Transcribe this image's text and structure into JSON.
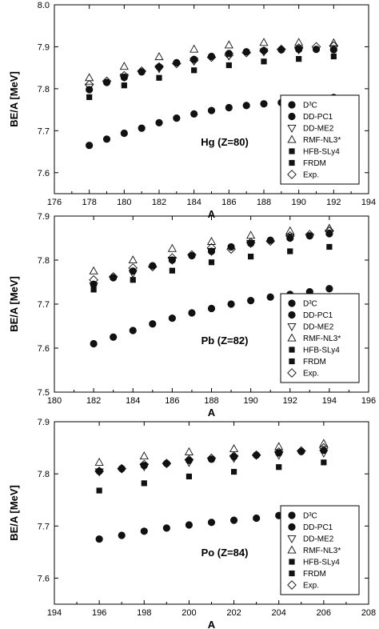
{
  "chart_data": [
    {
      "type": "scatter",
      "panel_label": "Hg (Z=80)",
      "xlabel": "A",
      "ylabel": "BE/A [MeV]",
      "xlim": [
        176,
        194
      ],
      "ylim": [
        7.55,
        8.0
      ],
      "xticks": [
        "176",
        "178",
        "180",
        "182",
        "184",
        "186",
        "188",
        "190",
        "192",
        "194"
      ],
      "yticks": [
        "7.6",
        "7.7",
        "7.8",
        "7.9",
        "8.0"
      ],
      "legend_position": "bottom-right",
      "series": [
        {
          "name": "D³C",
          "marker": "circle-filled",
          "x": [
            178,
            179,
            180,
            181,
            182,
            183,
            184,
            185,
            186,
            187,
            188,
            189,
            190,
            191,
            192
          ],
          "y": [
            7.665,
            7.68,
            7.694,
            7.706,
            7.719,
            7.73,
            7.74,
            7.748,
            7.755,
            7.76,
            7.764,
            7.767,
            7.771,
            7.775,
            7.779
          ]
        },
        {
          "name": "DD-PC1",
          "marker": "circle-filled",
          "x": [
            178,
            179,
            180,
            181,
            182,
            183,
            184,
            185,
            186,
            187,
            188,
            189,
            190,
            191,
            192
          ],
          "y": [
            7.798,
            7.815,
            7.827,
            7.84,
            7.852,
            7.862,
            7.87,
            7.877,
            7.884,
            7.888,
            7.891,
            7.893,
            7.894,
            7.894,
            7.893
          ]
        },
        {
          "name": "DD-ME2",
          "marker": "triangle-down-open",
          "x": [
            178,
            180,
            182,
            184,
            186,
            188,
            190,
            192
          ],
          "y": [
            7.804,
            7.828,
            7.848,
            7.866,
            7.878,
            7.888,
            7.893,
            7.896
          ]
        },
        {
          "name": "RMF-NL3*",
          "marker": "triangle-up-open",
          "x": [
            178,
            180,
            182,
            184,
            186,
            188,
            190,
            192
          ],
          "y": [
            7.826,
            7.853,
            7.876,
            7.894,
            7.904,
            7.91,
            7.91,
            7.909
          ]
        },
        {
          "name": "HFB-SLy4",
          "marker": "square-filled",
          "x": [
            178,
            180,
            182,
            184,
            186,
            188,
            190,
            192
          ],
          "y": [
            7.78,
            7.808,
            7.826,
            7.844,
            7.856,
            7.865,
            7.871,
            7.877
          ]
        },
        {
          "name": "FRDM",
          "marker": "square-filled",
          "x": [],
          "y": []
        },
        {
          "name": "Exp.",
          "marker": "diamond-open",
          "x": [
            178,
            179,
            180,
            181,
            182,
            183,
            184,
            185,
            186,
            187,
            188,
            189,
            190,
            191,
            192
          ],
          "y": [
            7.81,
            7.818,
            7.831,
            7.842,
            7.852,
            7.86,
            7.868,
            7.875,
            7.88,
            7.886,
            7.89,
            7.894,
            7.897,
            7.9,
            7.902
          ]
        }
      ]
    },
    {
      "type": "scatter",
      "panel_label": "Pb (Z=82)",
      "xlabel": "A",
      "ylabel": "BE/A [MeV]",
      "xlim": [
        180,
        196
      ],
      "ylim": [
        7.5,
        7.9
      ],
      "xticks": [
        "180",
        "182",
        "184",
        "186",
        "188",
        "190",
        "192",
        "194",
        "196"
      ],
      "yticks": [
        "7.5",
        "7.6",
        "7.7",
        "7.8",
        "7.9"
      ],
      "legend_position": "bottom-right",
      "series": [
        {
          "name": "D³C",
          "marker": "circle-filled",
          "x": [
            182,
            183,
            184,
            185,
            186,
            187,
            188,
            189,
            190,
            191,
            192,
            193,
            194
          ],
          "y": [
            7.61,
            7.625,
            7.64,
            7.655,
            7.668,
            7.68,
            7.69,
            7.7,
            7.708,
            7.716,
            7.722,
            7.728,
            7.735
          ]
        },
        {
          "name": "DD-PC1",
          "marker": "circle-filled",
          "x": [
            182,
            183,
            184,
            185,
            186,
            187,
            188,
            189,
            190,
            191,
            192,
            193,
            194
          ],
          "y": [
            7.745,
            7.76,
            7.775,
            7.787,
            7.8,
            7.81,
            7.82,
            7.83,
            7.838,
            7.845,
            7.85,
            7.855,
            7.86
          ]
        },
        {
          "name": "DD-ME2",
          "marker": "triangle-down-open",
          "x": [
            182,
            184,
            186,
            188,
            190,
            192,
            194
          ],
          "y": [
            7.742,
            7.77,
            7.8,
            7.82,
            7.838,
            7.852,
            7.862
          ]
        },
        {
          "name": "RMF-NL3*",
          "marker": "triangle-up-open",
          "x": [
            182,
            184,
            186,
            188,
            190,
            192,
            194
          ],
          "y": [
            7.775,
            7.8,
            7.826,
            7.842,
            7.856,
            7.866,
            7.872
          ]
        },
        {
          "name": "HFB-SLy4",
          "marker": "square-filled",
          "x": [
            182,
            184,
            186,
            188,
            190,
            192,
            194
          ],
          "y": [
            7.733,
            7.755,
            7.776,
            7.795,
            7.808,
            7.82,
            7.83
          ]
        },
        {
          "name": "FRDM",
          "marker": "square-filled",
          "x": [],
          "y": []
        },
        {
          "name": "Exp.",
          "marker": "diamond-open",
          "x": [
            182,
            183,
            184,
            185,
            186,
            187,
            188,
            189,
            190,
            191,
            192,
            193,
            194
          ],
          "y": [
            7.755,
            7.762,
            7.782,
            7.785,
            7.805,
            7.812,
            7.828,
            7.825,
            7.84,
            7.843,
            7.855,
            7.858,
            7.866
          ]
        }
      ]
    },
    {
      "type": "scatter",
      "panel_label": "Po (Z=84)",
      "xlabel": "A",
      "ylabel": "BE/A [MeV]",
      "xlim": [
        194,
        208
      ],
      "ylim": [
        7.55,
        7.9
      ],
      "xticks": [
        "194",
        "196",
        "198",
        "200",
        "202",
        "204",
        "206",
        "208"
      ],
      "yticks": [
        "7.6",
        "7.7",
        "7.8",
        "7.9"
      ],
      "legend_position": "bottom-right",
      "series": [
        {
          "name": "D³C",
          "marker": "circle-filled",
          "x": [
            196,
            197,
            198,
            199,
            200,
            201,
            202,
            203,
            204,
            205,
            206
          ],
          "y": [
            7.675,
            7.682,
            7.69,
            7.696,
            7.702,
            7.707,
            7.711,
            7.715,
            7.72,
            7.726,
            7.73
          ]
        },
        {
          "name": "DD-PC1",
          "marker": "circle-filled",
          "x": [
            196,
            197,
            198,
            199,
            200,
            201,
            202,
            203,
            204,
            205,
            206
          ],
          "y": [
            7.805,
            7.81,
            7.816,
            7.82,
            7.826,
            7.828,
            7.833,
            7.836,
            7.84,
            7.843,
            7.845
          ]
        },
        {
          "name": "DD-ME2",
          "marker": "triangle-down-open",
          "x": [
            196,
            198,
            200,
            202,
            204,
            206
          ],
          "y": [
            7.804,
            7.814,
            7.822,
            7.83,
            7.836,
            7.84
          ]
        },
        {
          "name": "RMF-NL3*",
          "marker": "triangle-up-open",
          "x": [
            196,
            198,
            200,
            202,
            204,
            206
          ],
          "y": [
            7.822,
            7.834,
            7.842,
            7.848,
            7.852,
            7.858
          ]
        },
        {
          "name": "HFB-SLy4",
          "marker": "square-filled",
          "x": [
            196,
            198,
            200,
            202,
            204,
            206
          ],
          "y": [
            7.768,
            7.782,
            7.795,
            7.804,
            7.813,
            7.822
          ]
        },
        {
          "name": "FRDM",
          "marker": "square-filled",
          "x": [],
          "y": []
        },
        {
          "name": "Exp.",
          "marker": "diamond-open",
          "x": [
            196,
            197,
            198,
            199,
            200,
            201,
            202,
            203,
            204,
            205,
            206
          ],
          "y": [
            7.805,
            7.81,
            7.818,
            7.82,
            7.827,
            7.83,
            7.834,
            7.836,
            7.842,
            7.844,
            7.85
          ]
        }
      ]
    }
  ]
}
